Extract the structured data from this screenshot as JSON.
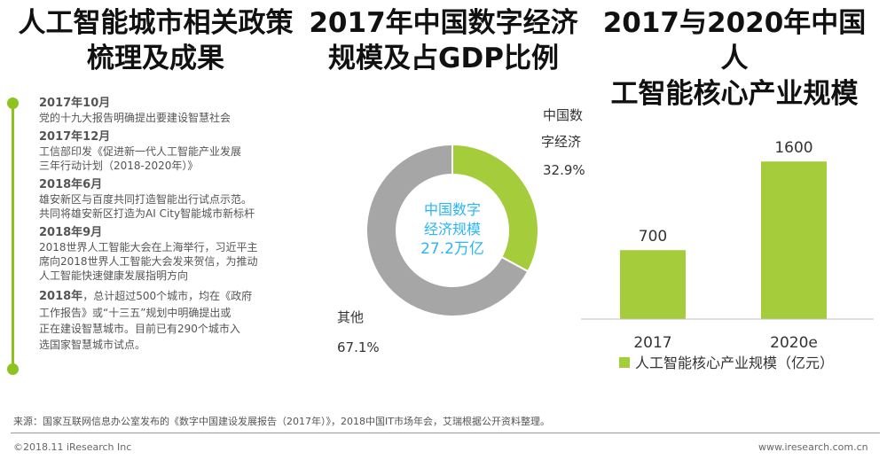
{
  "titles": {
    "policy": [
      "人工智能城市相关政策",
      "梳理及成果"
    ],
    "digital": [
      "2017年中国数字经济",
      "规模及占GDP比例"
    ],
    "ai_industry": [
      "2017与2020年中国人",
      "工智能核心产业规模"
    ]
  },
  "timeline": {
    "events": [
      {
        "date": "2017年10月",
        "text": [
          "党的十九大报告明确提出要建设智慧社会"
        ]
      },
      {
        "date": "2017年12月",
        "text": [
          "工信部印发《促进新一代人工智能产业发展",
          "三年行动计划（2018-2020年）》"
        ]
      },
      {
        "date": "2018年6月",
        "text": [
          "雄安新区与百度共同打造智能出行试点示范。",
          "共同将雄安新区打造为AI City智能城市新标杆"
        ]
      },
      {
        "date": "2018年9月",
        "text": [
          "2018世界人工智能大会在上海举行，习近平主",
          "席向2018世界人工智能大会发来贺信，为推动",
          "人工智能快速健康发展指明方向"
        ]
      }
    ],
    "final": {
      "date": "2018年",
      "lines": [
        "，总计超过500个城市，均在《政府",
        "工作报告》或“十三五”规划中明确提出或",
        "正在建设智慧城市。目前已有290个城市入",
        "选国家智慧城市试点。"
      ]
    }
  },
  "chart_data": [
    {
      "type": "pie",
      "title": "2017年中国数字经济规模及占GDP比例",
      "center_label": [
        "中国数字",
        "经济规模",
        "27.2万亿"
      ],
      "slices": [
        {
          "label": "中国数字经济",
          "label_lines": [
            "中国数",
            "字经济"
          ],
          "value": 32.9,
          "value_label": "32.9%",
          "color": "#a5cc3a"
        },
        {
          "label": "其他",
          "label_lines": [
            "其他"
          ],
          "value": 67.1,
          "value_label": "67.1%",
          "color": "#a6a6a6"
        }
      ]
    },
    {
      "type": "bar",
      "title": "2017与2020年中国人工智能核心产业规模",
      "categories": [
        "2017",
        "2020e"
      ],
      "series": [
        {
          "name": "人工智能核心产业规模（亿元）",
          "values": [
            700,
            1600
          ],
          "color": "#a5cc3a"
        }
      ],
      "ylim": [
        0,
        1800
      ],
      "legend": "bottom"
    }
  ],
  "footer": {
    "source": "来源：国家互联网信息办公室发布的《数字中国建设发展报告（2017年）》，2018中国IT市场年会，艾瑞根据公开资料整理。",
    "copyright": "©2018.11 iResearch Inc",
    "website": "www.iresearch.com.cn"
  }
}
